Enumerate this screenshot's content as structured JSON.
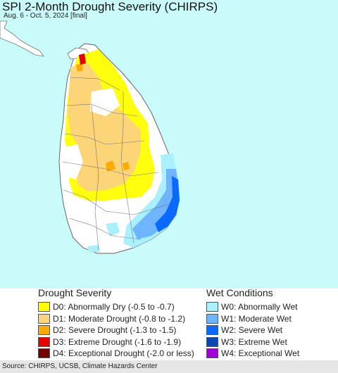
{
  "header": {
    "title": "SPI 2-Month Drought Severity (CHIRPS)",
    "subtitle": "Aug. 6 - Oct. 5, 2024 [final]"
  },
  "map": {
    "ocean_color": "#c9fbfb",
    "land_color": "#ffffff",
    "border_color": "#777777"
  },
  "legend": {
    "drought": {
      "title": "Drought Severity",
      "items": [
        {
          "label": "D0: Abnormally Dry (-0.5 to -0.7)",
          "color": "#ffff00"
        },
        {
          "label": "D1: Moderate Drought (-0.8 to -1.2)",
          "color": "#fcd37f"
        },
        {
          "label": "D2: Severe Drought (-1.3 to -1.5)",
          "color": "#ffaa00"
        },
        {
          "label": "D3: Extreme Drought (-1.6 to -1.9)",
          "color": "#e60000"
        },
        {
          "label": "D4: Exceptional Drought (-2.0 or less)",
          "color": "#730000"
        }
      ]
    },
    "wet": {
      "title": "Wet Conditions",
      "items": [
        {
          "label": "W0: Abnormally Wet",
          "color": "#aaf0ff"
        },
        {
          "label": "W1: Moderate Wet",
          "color": "#6fb4ff"
        },
        {
          "label": "W2: Severe Wet",
          "color": "#0a6aff"
        },
        {
          "label": "W3: Extreme Wet",
          "color": "#0a46b4"
        },
        {
          "label": "W4: Exceptional Wet",
          "color": "#a000d2"
        }
      ]
    }
  },
  "footer": {
    "source": "Source: CHIRPS, UCSB, Climate Hazards Center"
  }
}
